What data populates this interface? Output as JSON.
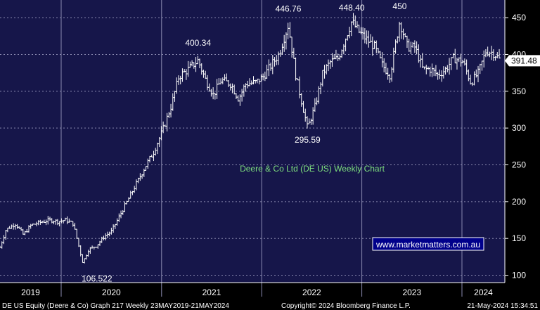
{
  "chart_data": {
    "type": "ohlc",
    "title": "Deere & Co Ltd (DE US) Weekly Chart",
    "watermark": "www.marketmatters.com.au",
    "y_ticks": [
      100,
      150,
      200,
      250,
      300,
      350,
      400,
      450
    ],
    "ylim": [
      90,
      474
    ],
    "x_labels": [
      "2019",
      "2020",
      "2021",
      "2022",
      "2023",
      "2024"
    ],
    "xlim": [
      "2019-05-23",
      "2024-05-21"
    ],
    "last_price": "391.48",
    "annotations": [
      {
        "label": "106.522",
        "date": "2020-03-20",
        "value": 106.522
      },
      {
        "label": "400.34",
        "date": "2021-05-14",
        "value": 400.34
      },
      {
        "label": "446.76",
        "date": "2022-04-08",
        "value": 446.76
      },
      {
        "label": "295.59",
        "date": "2022-06-17",
        "value": 295.59
      },
      {
        "label": "448.40",
        "date": "2022-11-25",
        "value": 448.4
      },
      {
        "label": "450",
        "date": "2023-05-19",
        "value": 450
      }
    ],
    "series": [
      [
        "2019-05-23",
        138
      ],
      [
        "2019-06-14",
        162
      ],
      [
        "2019-07-19",
        170
      ],
      [
        "2019-08-16",
        155
      ],
      [
        "2019-09-13",
        168
      ],
      [
        "2019-10-18",
        172
      ],
      [
        "2019-11-22",
        175
      ],
      [
        "2019-12-20",
        173
      ],
      [
        "2020-01-17",
        175
      ],
      [
        "2020-02-14",
        170
      ],
      [
        "2020-03-20",
        117
      ],
      [
        "2020-04-10",
        135
      ],
      [
        "2020-05-08",
        140
      ],
      [
        "2020-06-05",
        152
      ],
      [
        "2020-07-03",
        160
      ],
      [
        "2020-08-07",
        185
      ],
      [
        "2020-09-04",
        205
      ],
      [
        "2020-10-02",
        225
      ],
      [
        "2020-11-06",
        250
      ],
      [
        "2020-12-04",
        268
      ],
      [
        "2021-01-08",
        300
      ],
      [
        "2021-02-05",
        330
      ],
      [
        "2021-03-05",
        370
      ],
      [
        "2021-04-09",
        380
      ],
      [
        "2021-05-14",
        392
      ],
      [
        "2021-06-11",
        365
      ],
      [
        "2021-07-09",
        345
      ],
      [
        "2021-08-06",
        365
      ],
      [
        "2021-09-10",
        360
      ],
      [
        "2021-10-08",
        340
      ],
      [
        "2021-11-05",
        360
      ],
      [
        "2021-12-10",
        362
      ],
      [
        "2022-01-07",
        370
      ],
      [
        "2022-02-04",
        385
      ],
      [
        "2022-03-04",
        400
      ],
      [
        "2022-04-08",
        440
      ],
      [
        "2022-05-06",
        370
      ],
      [
        "2022-06-17",
        300
      ],
      [
        "2022-07-15",
        330
      ],
      [
        "2022-08-12",
        375
      ],
      [
        "2022-09-09",
        390
      ],
      [
        "2022-10-07",
        395
      ],
      [
        "2022-11-25",
        445
      ],
      [
        "2022-12-23",
        430
      ],
      [
        "2023-01-20",
        420
      ],
      [
        "2023-02-17",
        410
      ],
      [
        "2023-03-17",
        385
      ],
      [
        "2023-04-14",
        372
      ],
      [
        "2023-05-19",
        445
      ],
      [
        "2023-06-16",
        410
      ],
      [
        "2023-07-14",
        410
      ],
      [
        "2023-08-11",
        380
      ],
      [
        "2023-09-08",
        380
      ],
      [
        "2023-10-06",
        372
      ],
      [
        "2023-11-03",
        380
      ],
      [
        "2023-12-01",
        395
      ],
      [
        "2024-01-05",
        390
      ],
      [
        "2024-02-02",
        362
      ],
      [
        "2024-03-01",
        375
      ],
      [
        "2024-03-29",
        405
      ],
      [
        "2024-04-26",
        402
      ],
      [
        "2024-05-21",
        391.48
      ]
    ]
  },
  "footer": {
    "left": "DE US Equity (Deere & Co) Graph 217  Weekly 23MAY2019-21MAY2024",
    "center": "Copyright© 2024 Bloomberg Finance L.P.",
    "right": "21-May-2024 15:34:51"
  },
  "colors": {
    "background": "#16164a",
    "frame": "#000000",
    "grid": "#8a8ab0",
    "price": "#ffffff",
    "title": "#7ee07e",
    "last_price_bg": "#ffffff"
  }
}
